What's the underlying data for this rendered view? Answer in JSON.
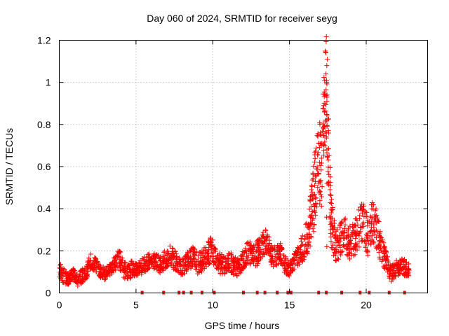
{
  "chart_data": {
    "type": "scatter",
    "title": "Day 060 of 2024, SRMTID for receiver seyg",
    "xlabel": "GPS time / hours",
    "ylabel": "SRMTID / TECUs",
    "xlim": [
      0,
      24
    ],
    "ylim": [
      0,
      1.2
    ],
    "grid": true,
    "marker": "+",
    "color": "#ff0000",
    "xticks": [
      {
        "value": 0,
        "label": "0"
      },
      {
        "value": 5,
        "label": "5"
      },
      {
        "value": 10,
        "label": "10"
      },
      {
        "value": 15,
        "label": "15"
      },
      {
        "value": 20,
        "label": "20"
      }
    ],
    "yticks": [
      {
        "value": 0,
        "label": "0"
      },
      {
        "value": 0.2,
        "label": "0.2"
      },
      {
        "value": 0.4,
        "label": "0.4"
      },
      {
        "value": 0.6,
        "label": "0.6"
      },
      {
        "value": 0.8,
        "label": "0.8"
      },
      {
        "value": 1.0,
        "label": "1"
      },
      {
        "value": 1.2,
        "label": "1.2"
      }
    ],
    "envelope": [
      [
        0.0,
        0.11,
        0.04
      ],
      [
        0.3,
        0.08,
        0.04
      ],
      [
        0.6,
        0.07,
        0.03
      ],
      [
        0.9,
        0.09,
        0.03
      ],
      [
        1.2,
        0.06,
        0.03
      ],
      [
        1.5,
        0.08,
        0.04
      ],
      [
        1.8,
        0.11,
        0.04
      ],
      [
        2.1,
        0.15,
        0.04
      ],
      [
        2.4,
        0.13,
        0.03
      ],
      [
        2.7,
        0.1,
        0.03
      ],
      [
        3.0,
        0.09,
        0.03
      ],
      [
        3.3,
        0.11,
        0.03
      ],
      [
        3.6,
        0.14,
        0.04
      ],
      [
        3.9,
        0.17,
        0.05
      ],
      [
        4.2,
        0.11,
        0.04
      ],
      [
        4.5,
        0.1,
        0.04
      ],
      [
        4.8,
        0.12,
        0.04
      ],
      [
        5.1,
        0.11,
        0.03
      ],
      [
        5.4,
        0.13,
        0.04
      ],
      [
        5.7,
        0.14,
        0.04
      ],
      [
        6.0,
        0.16,
        0.04
      ],
      [
        6.3,
        0.15,
        0.04
      ],
      [
        6.6,
        0.13,
        0.04
      ],
      [
        6.9,
        0.16,
        0.05
      ],
      [
        7.2,
        0.18,
        0.05
      ],
      [
        7.5,
        0.16,
        0.05
      ],
      [
        7.8,
        0.13,
        0.04
      ],
      [
        8.1,
        0.12,
        0.04
      ],
      [
        8.4,
        0.15,
        0.05
      ],
      [
        8.7,
        0.17,
        0.05
      ],
      [
        9.0,
        0.14,
        0.05
      ],
      [
        9.3,
        0.15,
        0.05
      ],
      [
        9.6,
        0.18,
        0.06
      ],
      [
        9.9,
        0.21,
        0.06
      ],
      [
        10.2,
        0.17,
        0.05
      ],
      [
        10.5,
        0.14,
        0.05
      ],
      [
        10.8,
        0.13,
        0.04
      ],
      [
        11.1,
        0.15,
        0.05
      ],
      [
        11.4,
        0.13,
        0.05
      ],
      [
        11.7,
        0.12,
        0.04
      ],
      [
        12.0,
        0.16,
        0.05
      ],
      [
        12.3,
        0.2,
        0.06
      ],
      [
        12.6,
        0.17,
        0.05
      ],
      [
        12.9,
        0.19,
        0.06
      ],
      [
        13.2,
        0.23,
        0.06
      ],
      [
        13.5,
        0.25,
        0.06
      ],
      [
        13.8,
        0.18,
        0.05
      ],
      [
        14.1,
        0.17,
        0.05
      ],
      [
        14.4,
        0.19,
        0.05
      ],
      [
        14.7,
        0.14,
        0.05
      ],
      [
        15.0,
        0.11,
        0.03
      ],
      [
        15.3,
        0.15,
        0.04
      ],
      [
        15.6,
        0.18,
        0.05
      ],
      [
        15.9,
        0.22,
        0.07
      ],
      [
        16.2,
        0.28,
        0.09
      ],
      [
        16.5,
        0.4,
        0.15
      ],
      [
        16.8,
        0.6,
        0.2
      ],
      [
        17.1,
        0.65,
        0.25
      ],
      [
        17.4,
        0.98,
        0.25
      ],
      [
        17.7,
        0.35,
        0.12
      ],
      [
        18.0,
        0.22,
        0.08
      ],
      [
        18.3,
        0.25,
        0.08
      ],
      [
        18.6,
        0.27,
        0.09
      ],
      [
        18.9,
        0.24,
        0.08
      ],
      [
        19.2,
        0.25,
        0.08
      ],
      [
        19.5,
        0.3,
        0.1
      ],
      [
        19.8,
        0.33,
        0.11
      ],
      [
        20.1,
        0.27,
        0.1
      ],
      [
        20.4,
        0.35,
        0.1
      ],
      [
        20.7,
        0.3,
        0.1
      ],
      [
        21.0,
        0.2,
        0.07
      ],
      [
        21.3,
        0.16,
        0.05
      ],
      [
        21.6,
        0.09,
        0.04
      ],
      [
        21.9,
        0.11,
        0.04
      ],
      [
        22.2,
        0.13,
        0.04
      ],
      [
        22.5,
        0.12,
        0.04
      ],
      [
        22.8,
        0.11,
        0.03
      ]
    ],
    "zero_markers": [
      5.4,
      6.8,
      7.8,
      8.1,
      8.6,
      9.3,
      10.1,
      12.0,
      12.9,
      13.4,
      14.2,
      14.9,
      15.1,
      16.9,
      17.4,
      18.4,
      19.6,
      20.2,
      21.5,
      22.5
    ]
  }
}
